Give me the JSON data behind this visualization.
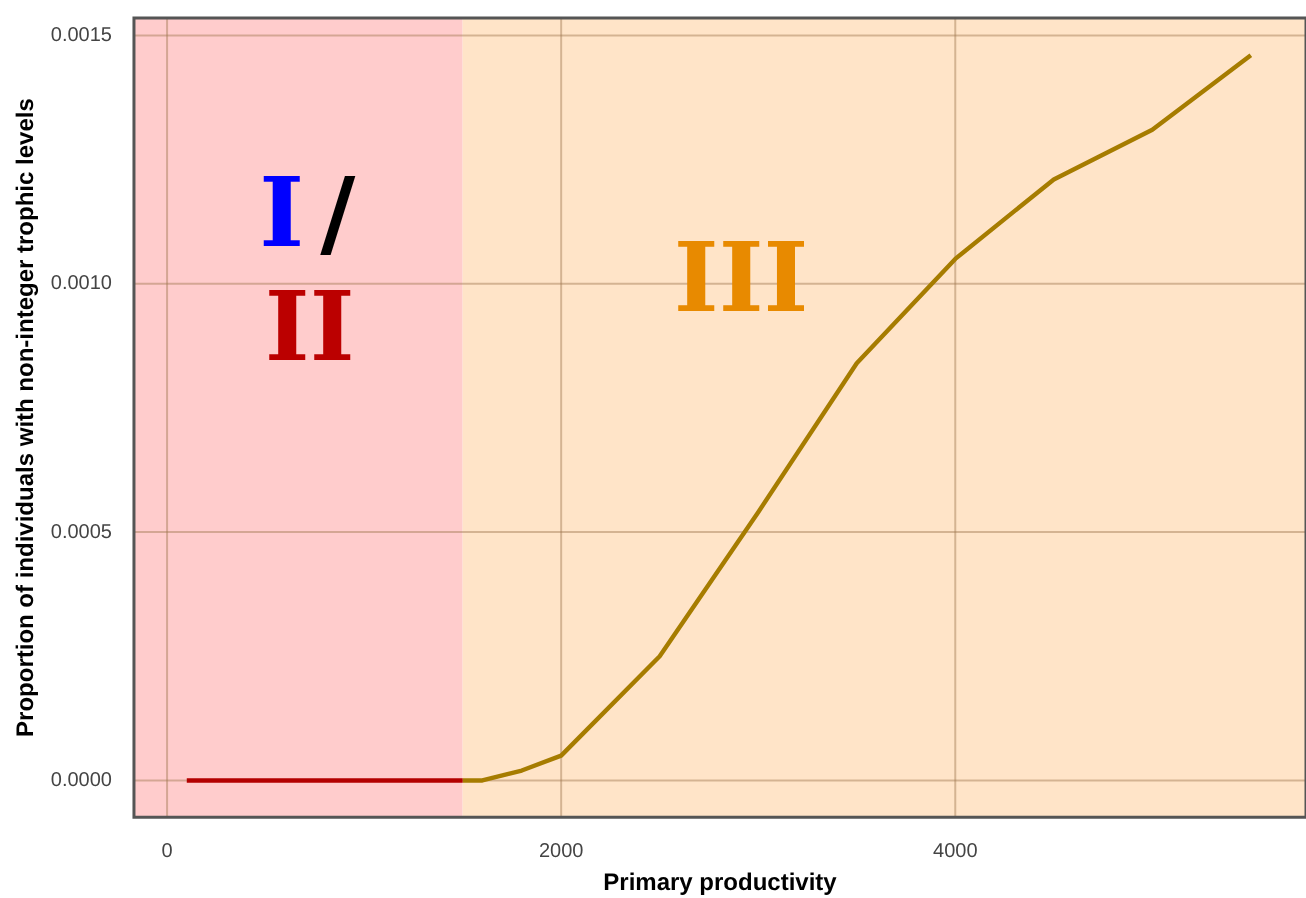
{
  "chart_data": {
    "type": "line",
    "xlabel": "Primary productivity",
    "ylabel": "Proportion of individuals with non-integer trophic levels",
    "xlim": [
      -168,
      5780
    ],
    "xticks": [
      0,
      2000,
      4000
    ],
    "ylim": [
      -7.4e-05,
      0.001535
    ],
    "yticks": [
      {
        "value": 0,
        "label": "0.0000"
      },
      {
        "value": 0.0005,
        "label": "0.0005"
      },
      {
        "value": 0.001,
        "label": "0.0010"
      },
      {
        "value": 0.0015,
        "label": "0.0015"
      }
    ],
    "grid": true,
    "legend": false,
    "marker": "none",
    "line_style": "solid",
    "bands": [
      {
        "axis": "x",
        "from": -168,
        "to": 1500,
        "color": "#ffcccc"
      },
      {
        "axis": "x",
        "from": 1500,
        "to": 5780,
        "color": "#ffe4c8"
      }
    ],
    "series": [
      {
        "color": "#b30000",
        "x": [
          100,
          1500
        ],
        "values": [
          0,
          0
        ]
      },
      {
        "color": "#a67c00",
        "x": [
          1500,
          1600,
          1800,
          2000,
          2500,
          3000,
          3500,
          4000,
          4500,
          5000,
          5500
        ],
        "values": [
          0,
          0,
          2e-05,
          5e-05,
          0.00025,
          0.00054,
          0.00084,
          0.00105,
          0.00121,
          0.00131,
          0.00146
        ]
      }
    ],
    "annotations": [
      "I",
      "/",
      "II",
      "III"
    ]
  }
}
